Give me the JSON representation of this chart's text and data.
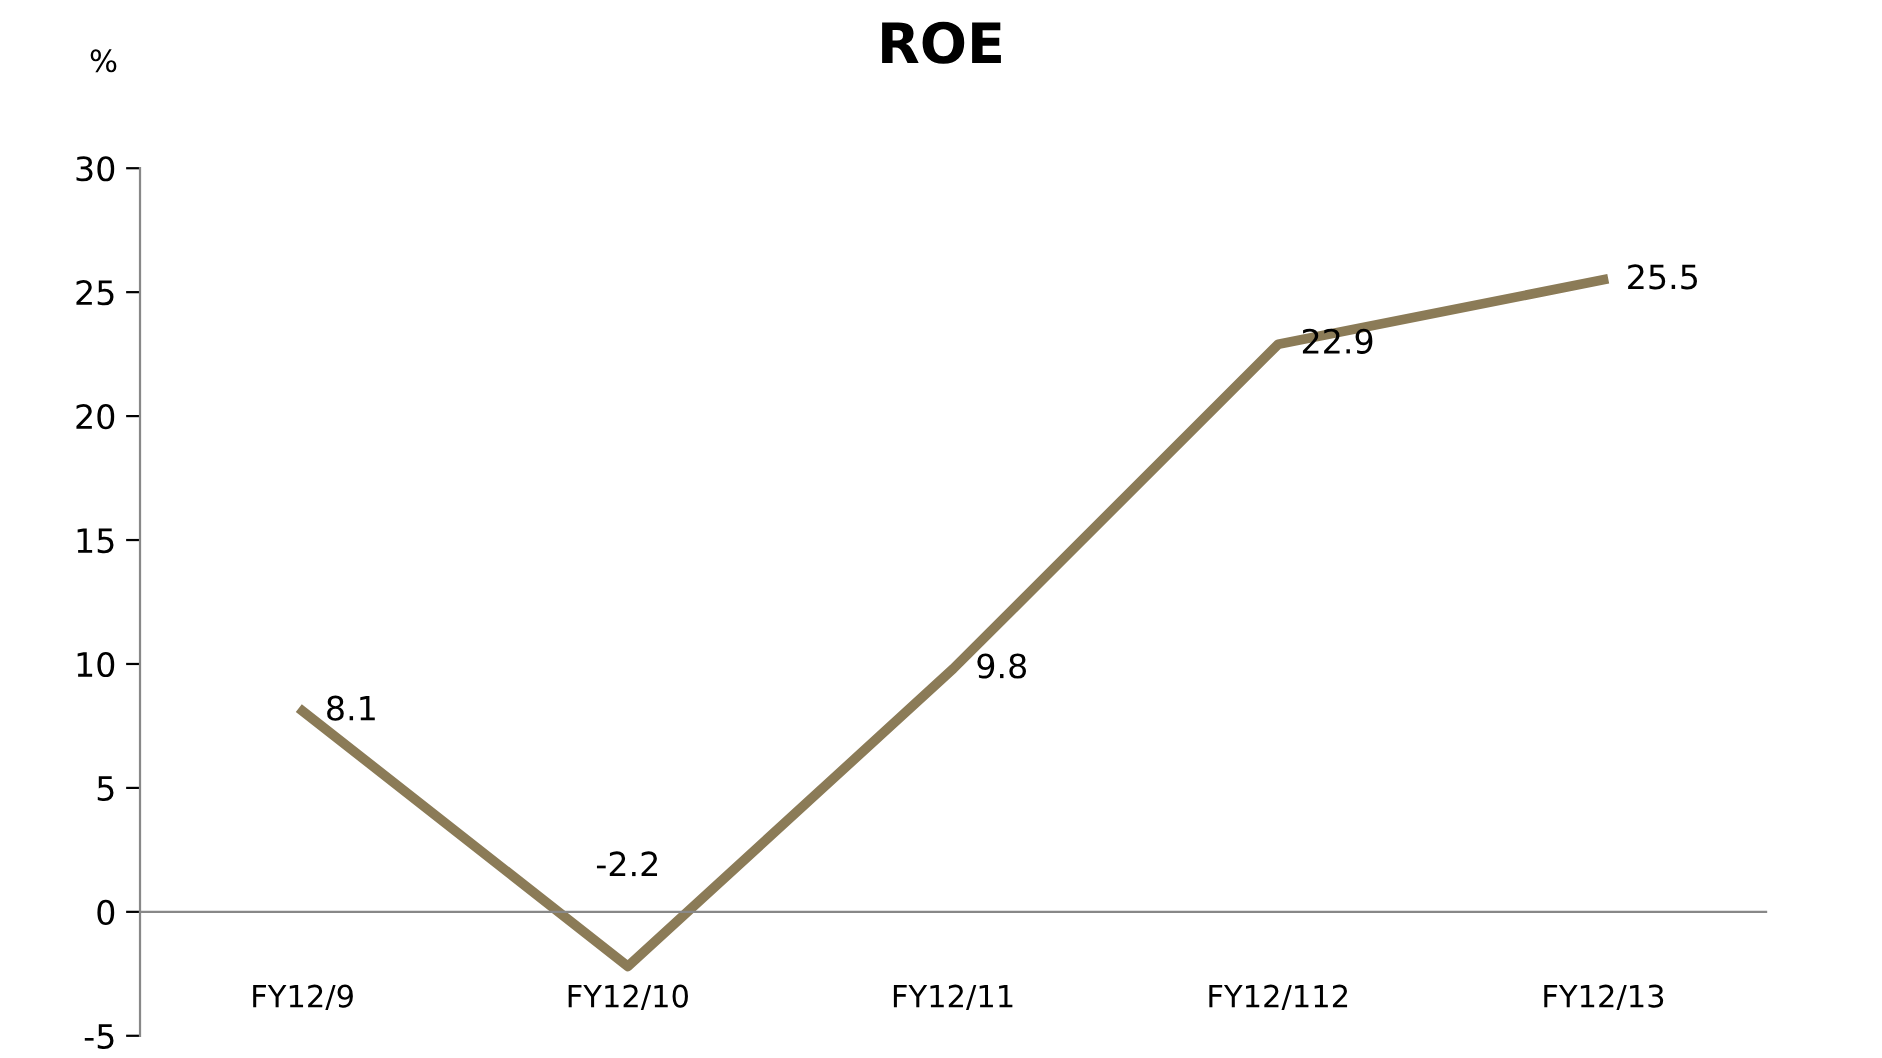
{
  "chart_data": {
    "type": "line",
    "title": "ROE",
    "ylabel": "%",
    "categories": [
      "FY12/9",
      "FY12/10",
      "FY12/11",
      "FY12/112",
      "FY12/13"
    ],
    "series": [
      {
        "color": "#8b7b57",
        "values": [
          8.1,
          -2.2,
          9.8,
          22.9,
          25.5
        ]
      }
    ],
    "ylim": [
      -5,
      30
    ],
    "yticks": [
      -5,
      0,
      5,
      10,
      15,
      20,
      25,
      30
    ],
    "data_labels": true,
    "grid": false,
    "legend": false,
    "marker": "none",
    "line_style": "solid"
  }
}
